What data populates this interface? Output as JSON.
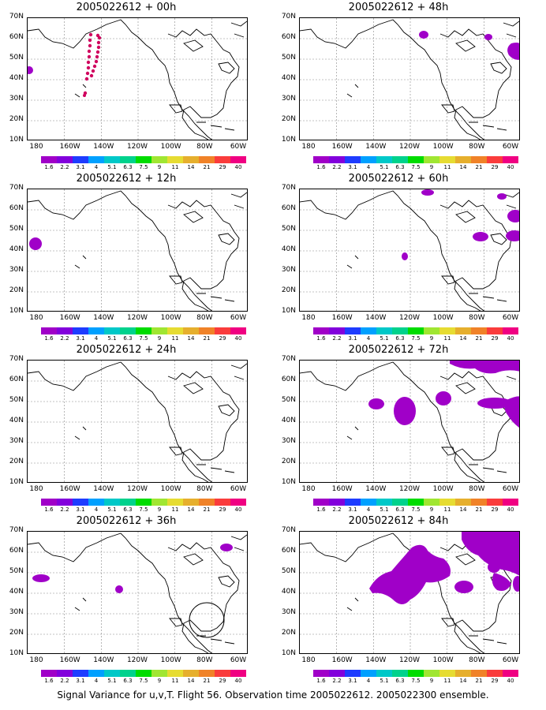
{
  "caption": "Signal Variance for u,v,T. Flight 56. Observation time 2005022612. 2005022300 ensemble.",
  "lat_labels": [
    "70N",
    "60N",
    "50N",
    "40N",
    "30N",
    "20N",
    "10N"
  ],
  "lon_labels": [
    "180",
    "160W",
    "140W",
    "120W",
    "100W",
    "80W",
    "60W"
  ],
  "colorbar": {
    "colors": [
      "#a000c8",
      "#8200dc",
      "#1e3cff",
      "#00a0ff",
      "#00c8c8",
      "#00d28c",
      "#00dc00",
      "#a0e632",
      "#e6dc32",
      "#e6af2d",
      "#f08228",
      "#fa3c3c",
      "#f00082"
    ],
    "labels": [
      "1.6",
      "2.2",
      "3.1",
      "4",
      "5.1",
      "6.3",
      "7.5",
      "9",
      "11",
      "14",
      "21",
      "29",
      "40"
    ]
  },
  "panels": [
    {
      "title": "2005022612 + 00h",
      "col": 0,
      "row": 0
    },
    {
      "title": "2005022612 + 12h",
      "col": 0,
      "row": 1
    },
    {
      "title": "2005022612 + 24h",
      "col": 0,
      "row": 2
    },
    {
      "title": "2005022612 + 36h",
      "col": 0,
      "row": 3
    },
    {
      "title": "2005022612 + 48h",
      "col": 1,
      "row": 0
    },
    {
      "title": "2005022612 + 60h",
      "col": 1,
      "row": 1
    },
    {
      "title": "2005022612 + 72h",
      "col": 1,
      "row": 2
    },
    {
      "title": "2005022612 + 84h",
      "col": 1,
      "row": 3
    }
  ]
}
